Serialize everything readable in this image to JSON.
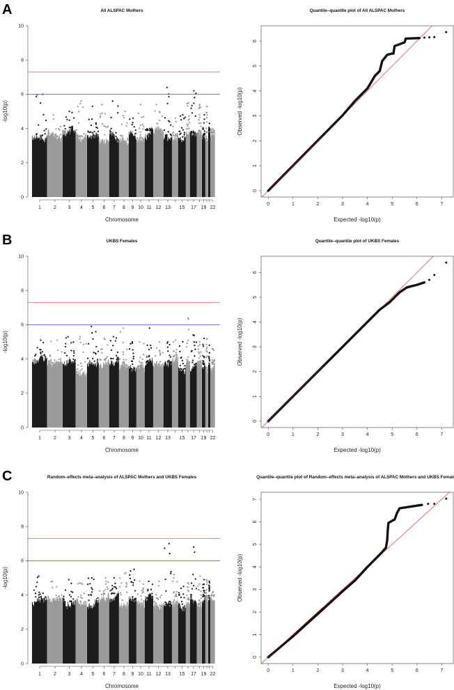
{
  "colors": {
    "odd_chr": "#1c1c1c",
    "even_chr": "#9a9a9a",
    "genome_wide_line": "#f08080",
    "suggestive_line": "#7070e8",
    "qq_diagonal": "#e05050",
    "qq_points": "#111111"
  },
  "chart_data": [
    {
      "panel": "A",
      "manhattan": {
        "type": "scatter",
        "title": "All ALSPAC Mothers",
        "xlabel": "Chromosome",
        "ylabel": "-log10(p)",
        "ylim": [
          0,
          10
        ],
        "yticks": [
          "0",
          "2",
          "4",
          "6",
          "8",
          "10"
        ],
        "xtick_labels": [
          "1",
          "2",
          "3",
          "4",
          "5",
          "6",
          "7",
          "8",
          "9",
          "10",
          "11",
          "12",
          "13",
          "15",
          "17",
          "19",
          "22"
        ],
        "thresholds": {
          "genome_wide": 7.3,
          "suggestive": 6
        },
        "chromosome_max": [
          6.0,
          4.8,
          5.0,
          5.6,
          5.3,
          5.4,
          5.6,
          5.0,
          4.6,
          5.4,
          4.0,
          5.4,
          6.4,
          4.6,
          4.8,
          5.5,
          6.2,
          5.4,
          4.8,
          5.3,
          4.3,
          4.0
        ]
      },
      "qq": {
        "type": "scatter",
        "title": "Quantile–quantile plot of All ALSPAC Mothers",
        "xlabel": "Expected  -log10(p)",
        "ylabel": "Observed  -log10(p)",
        "xticks": [
          "0",
          "1",
          "2",
          "3",
          "4",
          "5",
          "6",
          "7"
        ],
        "yticks": [
          "0",
          "1",
          "2",
          "3",
          "4",
          "5",
          "6"
        ],
        "curve": [
          [
            0,
            0
          ],
          [
            3,
            3.02
          ],
          [
            3.5,
            3.6
          ],
          [
            3.8,
            3.9
          ],
          [
            4,
            4.1
          ],
          [
            4.3,
            4.6
          ],
          [
            4.5,
            4.8
          ],
          [
            4.6,
            5.2
          ],
          [
            4.8,
            5.45
          ],
          [
            5.0,
            5.5
          ],
          [
            5.05,
            5.5
          ],
          [
            5.1,
            5.8
          ],
          [
            5.5,
            5.95
          ],
          [
            5.55,
            6.1
          ],
          [
            6.1,
            6.12
          ]
        ],
        "tail_points": [
          [
            6.3,
            6.14
          ],
          [
            6.5,
            6.15
          ],
          [
            6.7,
            6.16
          ],
          [
            7.18,
            6.36
          ]
        ]
      }
    },
    {
      "panel": "B",
      "manhattan": {
        "type": "scatter",
        "title": "UKBS Females",
        "xlabel": "Chromosome",
        "ylabel": "-log10(p)",
        "ylim": [
          0,
          10
        ],
        "yticks": [
          "0",
          "2",
          "4",
          "6",
          "8",
          "10"
        ],
        "xtick_labels": [
          "1",
          "2",
          "3",
          "4",
          "5",
          "6",
          "7",
          "8",
          "9",
          "10",
          "11",
          "12",
          "13",
          "15",
          "17",
          "19",
          "22"
        ],
        "thresholds": {
          "genome_wide": 7.3,
          "suggestive": 6
        },
        "chromosome_max": [
          5.1,
          5.1,
          5.3,
          5.3,
          5.9,
          5.2,
          5.3,
          5.8,
          5.0,
          5.0,
          5.8,
          5.0,
          5.0,
          5.1,
          5.0,
          6.4,
          5.4,
          5.0,
          5.2,
          5.2,
          4.8,
          4.6
        ]
      },
      "qq": {
        "type": "scatter",
        "title": "Quantile–quantile plot of UKBS Females",
        "xlabel": "Expected  -log10(p)",
        "ylabel": "Observed  -log10(p)",
        "xticks": [
          "0",
          "1",
          "2",
          "3",
          "4",
          "5",
          "6",
          "7"
        ],
        "yticks": [
          "0",
          "1",
          "2",
          "3",
          "4",
          "5",
          "6"
        ],
        "curve": [
          [
            0,
            0
          ],
          [
            4.5,
            4.5
          ],
          [
            4.9,
            4.8
          ],
          [
            5.3,
            5.2
          ],
          [
            5.6,
            5.4
          ],
          [
            6.0,
            5.5
          ],
          [
            6.3,
            5.6
          ]
        ],
        "tail_points": [
          [
            6.5,
            5.7
          ],
          [
            6.7,
            5.9
          ],
          [
            7.18,
            6.4
          ]
        ]
      }
    },
    {
      "panel": "C",
      "manhattan": {
        "type": "scatter",
        "title": "Random–effects meta–analysis of ALSPAC Mothers and UKBS Females",
        "xlabel": "Chromosome",
        "ylabel": "-log10(p)",
        "ylim": [
          0,
          10
        ],
        "yticks": [
          "0",
          "2",
          "4",
          "6",
          "8",
          "10"
        ],
        "xtick_labels": [
          "1",
          "2",
          "3",
          "4",
          "5",
          "6",
          "7",
          "8",
          "9",
          "10",
          "11",
          "12",
          "13",
          "15",
          "17",
          "19",
          "22"
        ],
        "thresholds": {
          "genome_wide": 7.3,
          "suggestive": 6
        },
        "chromosome_max": [
          5.1,
          4.8,
          4.9,
          4.7,
          5.0,
          5.0,
          5.0,
          5.3,
          5.5,
          4.8,
          4.8,
          4.8,
          7.0,
          5.2,
          4.5,
          4.7,
          6.8,
          5.1,
          4.9,
          4.9,
          4.8,
          4.2
        ]
      },
      "qq": {
        "type": "scatter",
        "title": "Quantile–quantile plot of Random–effects meta–analysis of ALSPAC Mothers and UKBS Females",
        "xlabel": "Expected  -log10(p)",
        "ylabel": "Observed  -log10(p)",
        "xticks": [
          "0",
          "1",
          "2",
          "3",
          "4",
          "5",
          "6",
          "7"
        ],
        "yticks": [
          "0",
          "1",
          "2",
          "3",
          "4",
          "5",
          "6",
          "7"
        ],
        "curve": [
          [
            0,
            0
          ],
          [
            1,
            0.93
          ],
          [
            2,
            1.92
          ],
          [
            3,
            2.92
          ],
          [
            3.5,
            3.4
          ],
          [
            4,
            4.0
          ],
          [
            4.5,
            4.55
          ],
          [
            4.75,
            4.85
          ],
          [
            4.8,
            5.2
          ],
          [
            4.82,
            5.6
          ],
          [
            4.85,
            5.95
          ],
          [
            5.0,
            6.05
          ],
          [
            5.1,
            6.1
          ],
          [
            5.2,
            6.4
          ],
          [
            5.3,
            6.6
          ],
          [
            5.6,
            6.65
          ],
          [
            6.0,
            6.72
          ],
          [
            6.2,
            6.75
          ]
        ],
        "tail_points": [
          [
            6.45,
            6.8
          ],
          [
            6.7,
            6.8
          ],
          [
            7.18,
            7.03
          ]
        ]
      }
    }
  ]
}
